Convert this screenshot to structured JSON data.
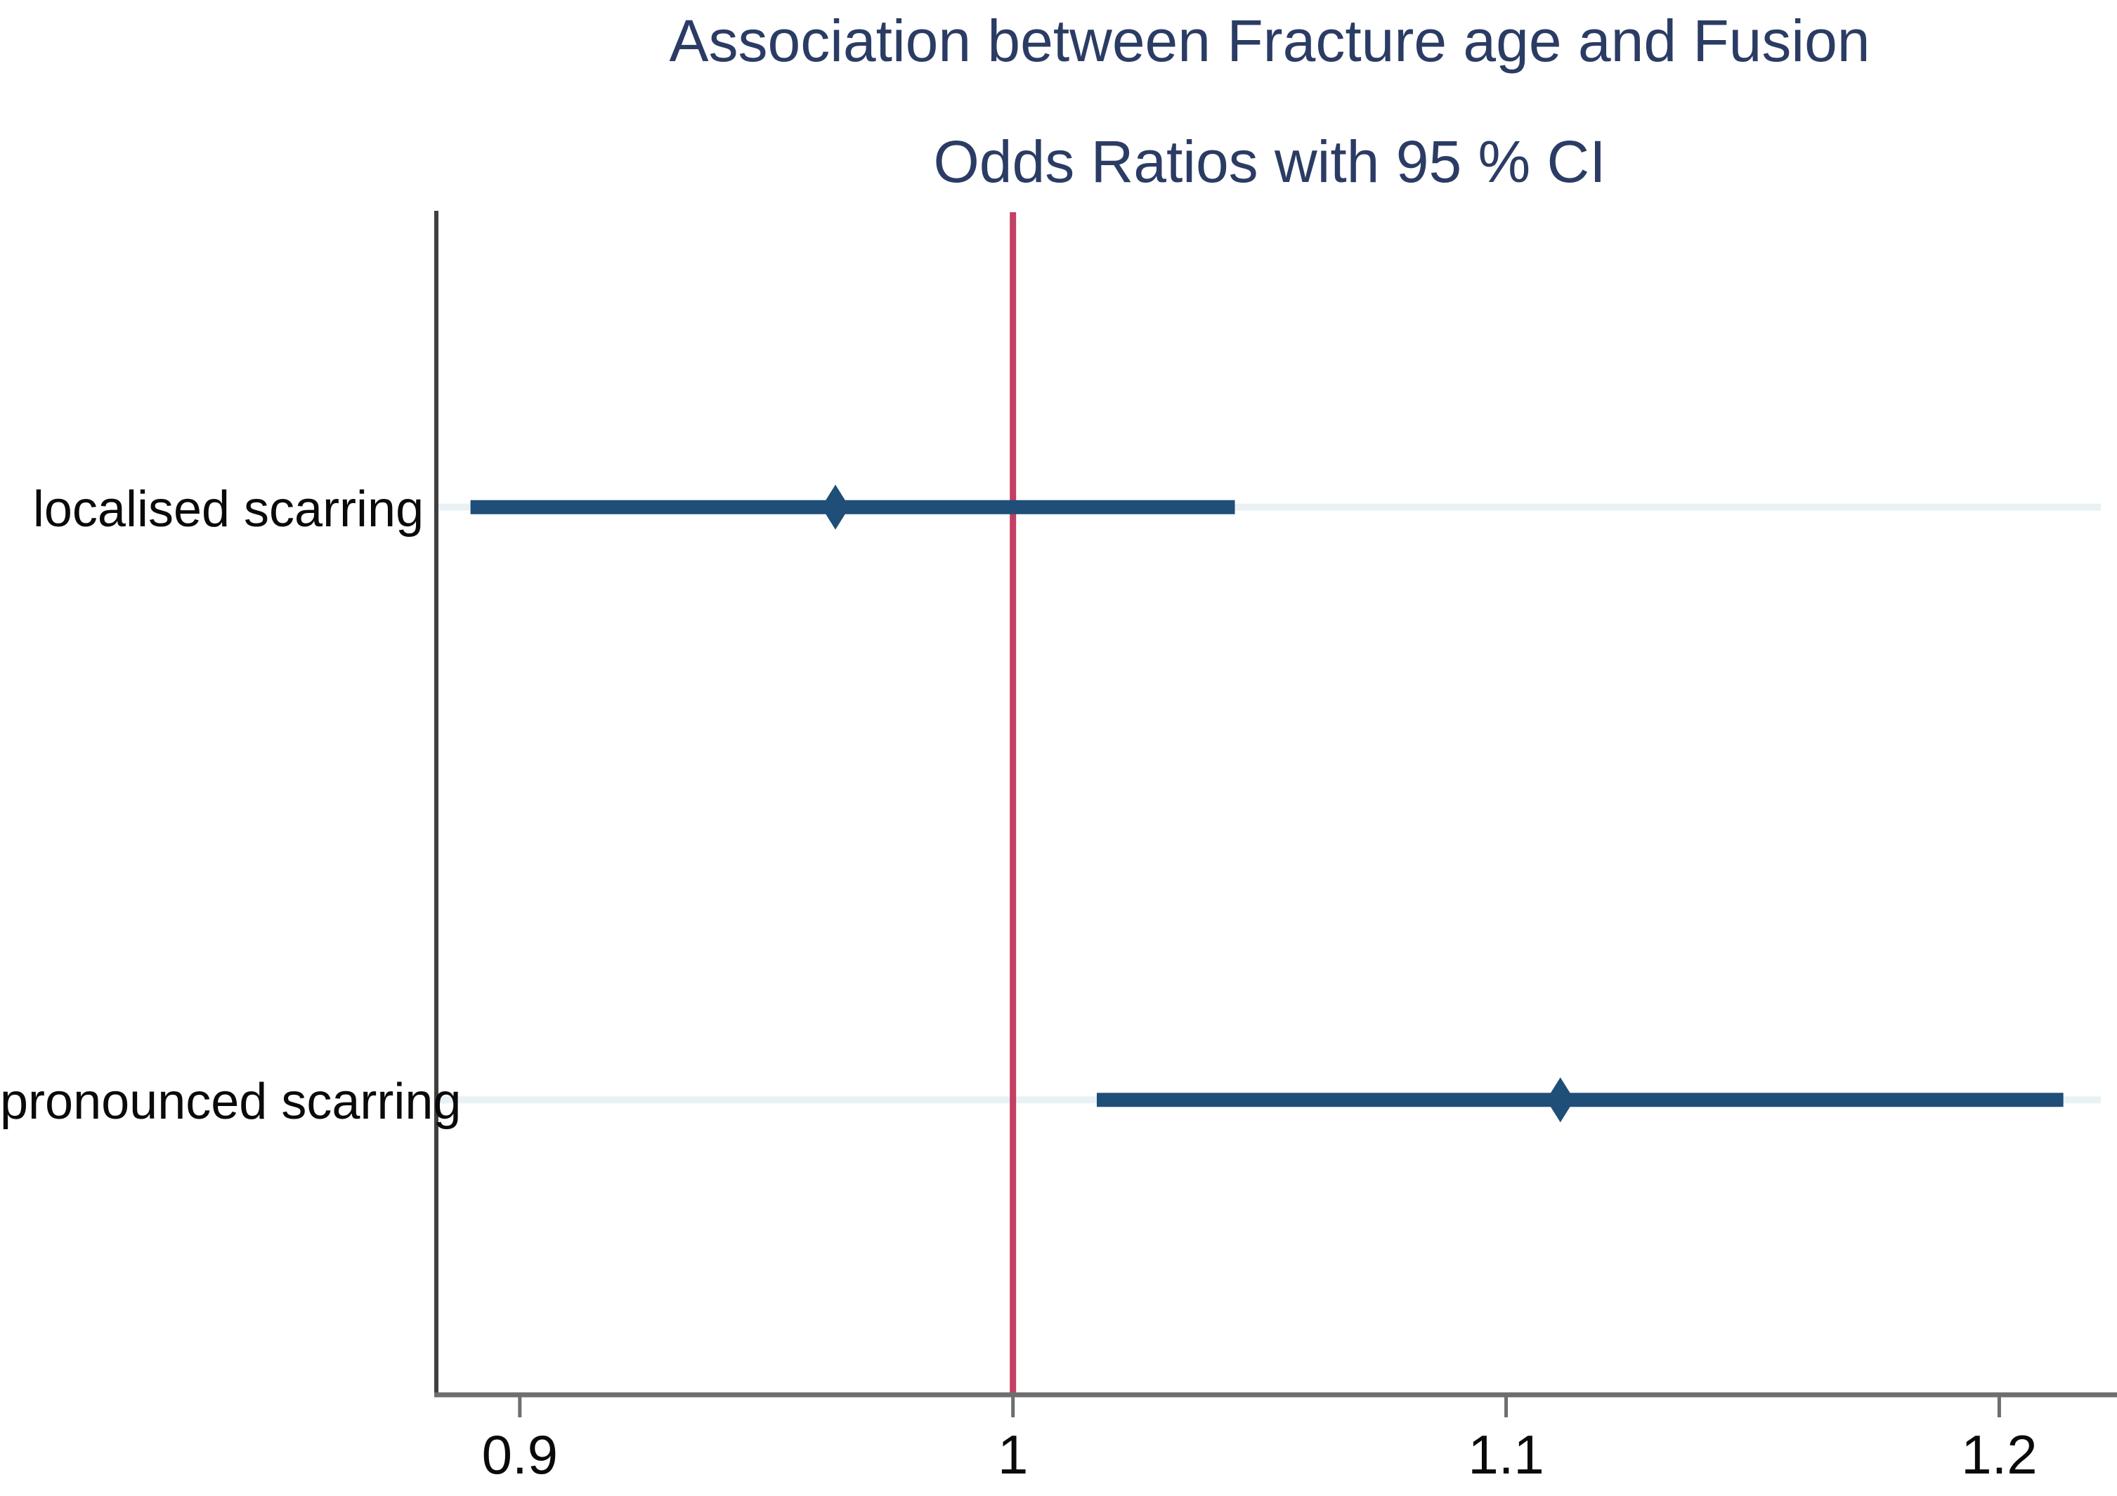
{
  "chart_data": {
    "type": "scatter",
    "subtype": "forest-plot-odds-ratios-with-95ci",
    "title": "Association between Fracture age and Fusion",
    "subtitle": "Odds Ratios with 95 % CI",
    "categories": [
      "localised scarring",
      "pronounced scarring"
    ],
    "rows": [
      {
        "label": "localised scarring",
        "or": 0.964,
        "ci_low": 0.89,
        "ci_high": 1.045
      },
      {
        "label": "pronounced scarring",
        "or": 1.111,
        "ci_low": 1.017,
        "ci_high": 1.213
      }
    ],
    "ref_line_x": 1.0,
    "x_ticks": [
      {
        "value": 0.9,
        "label": "0.9"
      },
      {
        "value": 1.0,
        "label": "1"
      },
      {
        "value": 1.1,
        "label": "1.1"
      },
      {
        "value": 1.2,
        "label": "1.2"
      }
    ],
    "xlim": [
      0.8835,
      1.2206
    ],
    "xlabel": "",
    "ylabel": "",
    "legend_position": "none",
    "grid": "light horizontal guide line per category row",
    "marker": "diamond",
    "colors": {
      "title_text": "#2b3c64",
      "ci_line": "#1f4e78",
      "marker": "#1f4e78",
      "ref_line": "#c23f63",
      "row_grid": "#e9f1f5",
      "y_axis": "#3f3f3f",
      "x_axis": "#6e6e6e",
      "tick_text": "#0a0a0a"
    }
  }
}
